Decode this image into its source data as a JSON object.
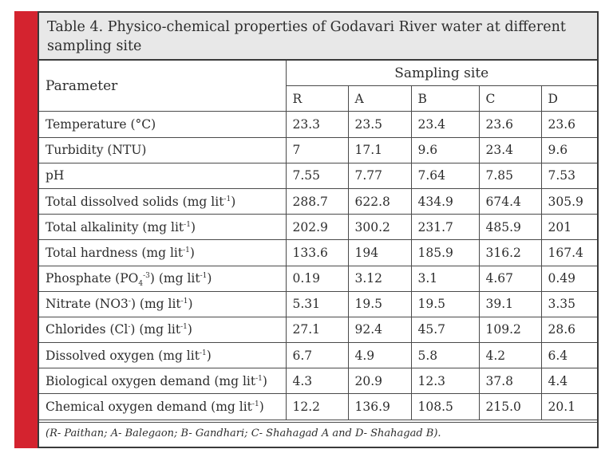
{
  "table": {
    "title": "Table 4. Physico-chemical properties of Godavari River water at different sampling site",
    "parameter_header": "Parameter",
    "group_header": "Sampling site",
    "sites": [
      "R",
      "A",
      "B",
      "C",
      "D"
    ],
    "rows": [
      {
        "param_html": "Temperature (&deg;C)",
        "values": [
          "23.3",
          "23.5",
          "23.4",
          "23.6",
          "23.6"
        ]
      },
      {
        "param_html": "Turbidity (NTU)",
        "values": [
          "7",
          "17.1",
          "9.6",
          "23.4",
          "9.6"
        ]
      },
      {
        "param_html": "pH",
        "values": [
          "7.55",
          "7.77",
          "7.64",
          "7.85",
          "7.53"
        ]
      },
      {
        "param_html": "Total dissolved solids (mg lit<sup>-1</sup>)",
        "values": [
          "288.7",
          "622.8",
          "434.9",
          "674.4",
          "305.9"
        ]
      },
      {
        "param_html": "Total alkalinity (mg lit<sup>-1</sup>)",
        "values": [
          "202.9",
          "300.2",
          "231.7",
          "485.9",
          "201"
        ]
      },
      {
        "param_html": "Total hardness (mg lit<sup>-1</sup>)",
        "values": [
          "133.6",
          "194",
          "185.9",
          "316.2",
          "167.4"
        ]
      },
      {
        "param_html": "Phosphate (PO<sub>4</sub><sup>-3</sup>) (mg lit<sup>-1</sup>)",
        "values": [
          "0.19",
          "3.12",
          "3.1",
          "4.67",
          "0.49"
        ]
      },
      {
        "param_html": "Nitrate (NO3<sup>-</sup>) (mg lit<sup>-1</sup>)",
        "values": [
          "5.31",
          "19.5",
          "19.5",
          "39.1",
          "3.35"
        ]
      },
      {
        "param_html": "Chlorides (Cl<sup>-</sup>) (mg lit<sup>-1</sup>)",
        "values": [
          "27.1",
          "92.4",
          "45.7",
          "109.2",
          "28.6"
        ]
      },
      {
        "param_html": "Dissolved oxygen (mg lit<sup>-1</sup>)",
        "values": [
          "6.7",
          "4.9",
          "5.8",
          "4.2",
          "6.4"
        ]
      },
      {
        "param_html": "Biological oxygen demand (mg lit<sup>-1</sup>)",
        "values": [
          "4.3",
          "20.9",
          "12.3",
          "37.8",
          "4.4"
        ]
      },
      {
        "param_html": "Chemical oxygen demand (mg lit<sup>-1</sup>)",
        "values": [
          "12.2",
          "136.9",
          "108.5",
          "215.0",
          "20.1"
        ]
      }
    ],
    "footnote": "(R- Paithan; A- Balegaon;  B- Gandhari; C- Shahagad A and D- Shahagad B)."
  },
  "colors": {
    "accent_bar": "#d4232f",
    "title_bg": "#e8e8e8",
    "border": "#3a3a3a"
  }
}
